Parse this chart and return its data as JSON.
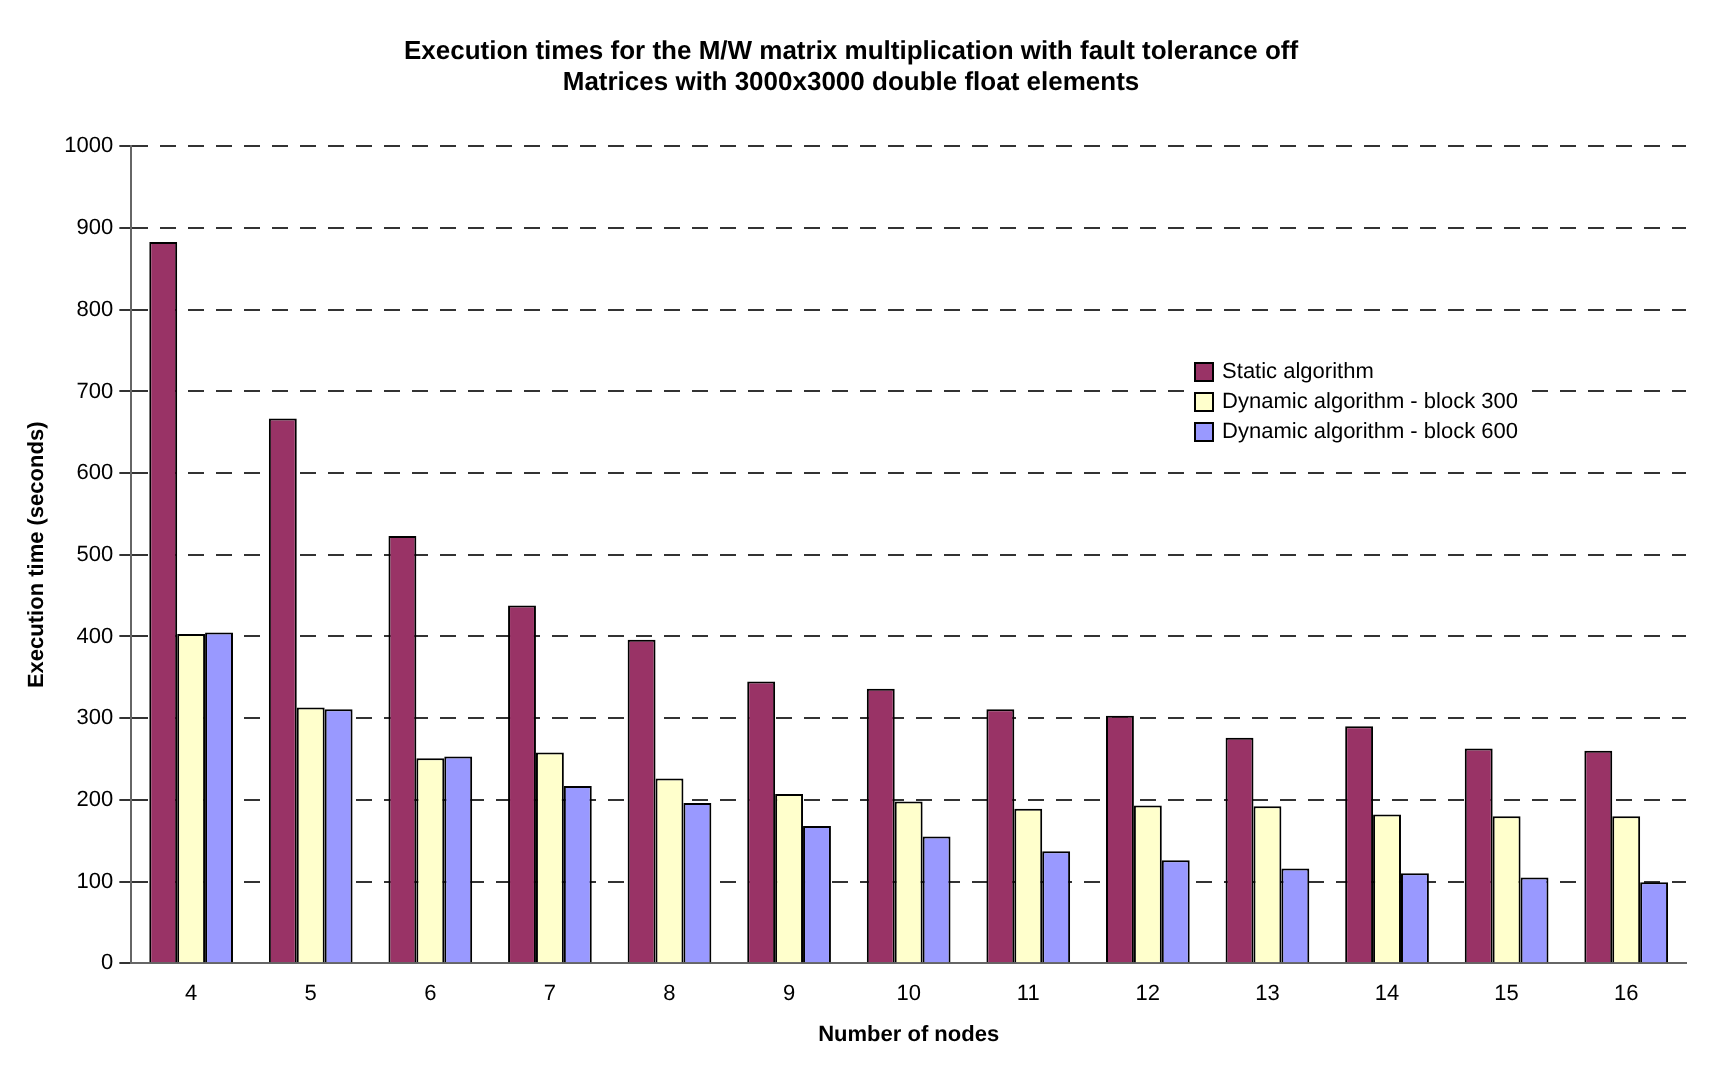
{
  "chart_data": {
    "type": "bar",
    "title": "Execution times for the M/W matrix multiplication with fault tolerance off",
    "subtitle": "Matrices with 3000x3000 double float elements",
    "xlabel": "Number of nodes",
    "ylabel": "Execution time (seconds)",
    "categories": [
      "4",
      "5",
      "6",
      "7",
      "8",
      "9",
      "10",
      "11",
      "12",
      "13",
      "14",
      "15",
      "16"
    ],
    "series": [
      {
        "name": "Static algorithm",
        "color": "#993366",
        "values": [
          883,
          667,
          523,
          438,
          396,
          345,
          336,
          311,
          303,
          276,
          290,
          263,
          260
        ]
      },
      {
        "name": "Dynamic algorithm - block 300",
        "color": "#ffffcc",
        "values": [
          403,
          313,
          251,
          258,
          226,
          207,
          198,
          189,
          193,
          192,
          182,
          180,
          180
        ]
      },
      {
        "name": "Dynamic algorithm - block 600",
        "color": "#9999ff",
        "values": [
          405,
          311,
          253,
          217,
          196,
          168,
          155,
          137,
          126,
          116,
          110,
          105,
          99
        ]
      }
    ],
    "ylim": [
      0,
      1000
    ],
    "yticks": [
      0,
      100,
      200,
      300,
      400,
      500,
      600,
      700,
      800,
      900,
      1000
    ],
    "grid": "y",
    "legend": "right"
  }
}
